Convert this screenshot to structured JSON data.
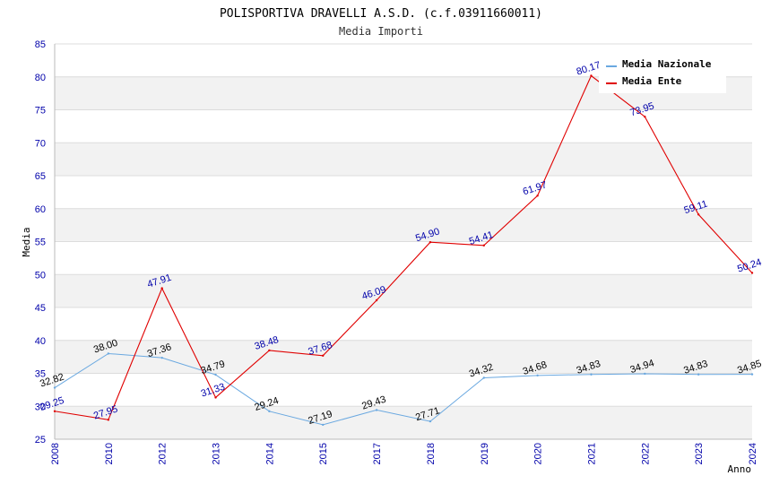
{
  "chart_data": {
    "type": "line",
    "title": "POLISPORTIVA DRAVELLI A.S.D. (c.f.03911660011)",
    "subtitle": "Media Importi",
    "xlabel": "Anno",
    "ylabel": "Media",
    "ylim": [
      25,
      85
    ],
    "yticks": [
      25,
      30,
      35,
      40,
      45,
      50,
      55,
      60,
      65,
      70,
      75,
      80,
      85
    ],
    "grid": true,
    "legend_position": "top-right",
    "categories": [
      "2008",
      "2010",
      "2012",
      "2013",
      "2014",
      "2015",
      "2017",
      "2018",
      "2019",
      "2020",
      "2021",
      "2022",
      "2023",
      "2024"
    ],
    "series": [
      {
        "name": "Media Nazionale",
        "color": "#6aa8e0",
        "label_color": "#000000",
        "values": [
          32.82,
          38.0,
          37.36,
          34.79,
          29.24,
          27.19,
          29.43,
          27.71,
          34.32,
          34.68,
          34.83,
          34.94,
          34.83,
          34.85
        ],
        "labels": [
          "32.82",
          "38.00",
          "37.36",
          "34.79",
          "29.24",
          "27.19",
          "29.43",
          "27.71",
          "34.32",
          "34.68",
          "34.83",
          "34.94",
          "34.83",
          "34.85"
        ]
      },
      {
        "name": "Media Ente",
        "color": "#e00000",
        "label_color": "#0000aa",
        "values": [
          29.25,
          27.95,
          47.91,
          31.33,
          38.48,
          37.68,
          46.09,
          54.9,
          54.41,
          61.97,
          80.17,
          73.95,
          59.11,
          50.24
        ],
        "labels": [
          "29.25",
          "27.95",
          "47.91",
          "31.33",
          "38.48",
          "37.68",
          "46.09",
          "54.90",
          "54.41",
          "61.97",
          "80.17",
          "73.95",
          "59.11",
          "50.24"
        ]
      }
    ]
  }
}
